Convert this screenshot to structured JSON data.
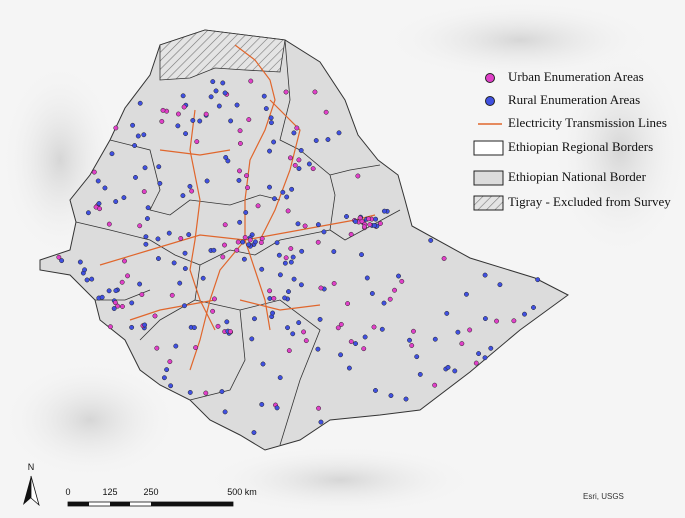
{
  "legend": {
    "items": [
      {
        "label": "Urban Enumeration Areas"
      },
      {
        "label": "Rural Enumeration Areas"
      },
      {
        "label": "Electricity Transmission Lines"
      },
      {
        "label": "Ethiopian Regional Borders"
      },
      {
        "label": "Ethiopian National Border"
      },
      {
        "label": "Tigray - Excluded from Survey"
      }
    ]
  },
  "scale_bar": {
    "labels": [
      "0",
      "125",
      "250",
      "500 km"
    ]
  },
  "north_arrow": {
    "label": "N"
  },
  "attribution": "Esri, USGS"
}
